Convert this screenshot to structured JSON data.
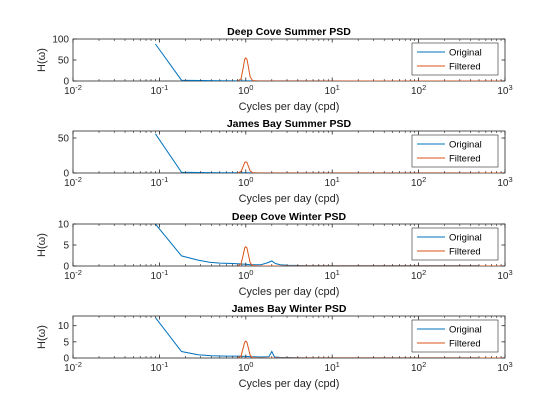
{
  "figure": {
    "legend_labels": [
      "Original",
      "Filtered"
    ],
    "colors": {
      "original": "#0072BD",
      "filtered": "#D95319",
      "axes": "#262626",
      "background": "#ffffff"
    }
  },
  "chart_data": [
    {
      "type": "line",
      "title": "Deep Cove Summer PSD",
      "xlabel": "Cycles per day (cpd)",
      "ylabel": "H(ω)",
      "xscale": "log",
      "xlim": [
        0.01,
        1000
      ],
      "ylim": [
        0,
        100
      ],
      "yticks": [
        0,
        50,
        100
      ],
      "xtick_labels": [
        "10-2",
        "10-1",
        "100",
        "101",
        "102",
        "103"
      ],
      "legend": "top-right",
      "grid": false,
      "series": [
        {
          "name": "Original",
          "x": [
            0.09,
            0.18,
            0.5,
            0.85,
            1.0,
            2.0,
            5,
            20,
            100,
            500
          ],
          "y": [
            88,
            2,
            0.5,
            0.3,
            0.3,
            0.2,
            0.2,
            0.1,
            0.1,
            0.1
          ]
        },
        {
          "name": "Filtered",
          "x": [
            0.8,
            0.88,
            0.93,
            0.97,
            1.0,
            1.03,
            1.07,
            1.12,
            1.2,
            1.4,
            3,
            10,
            100,
            1000
          ],
          "y": [
            0,
            5,
            30,
            52,
            55,
            52,
            35,
            10,
            1,
            0,
            0,
            0,
            0,
            0
          ]
        }
      ]
    },
    {
      "type": "line",
      "title": "James Bay Summer PSD",
      "xlabel": "Cycles per day (cpd)",
      "ylabel": "",
      "xscale": "log",
      "xlim": [
        0.01,
        1000
      ],
      "ylim": [
        0,
        60
      ],
      "yticks": [
        0,
        50
      ],
      "xtick_labels": [
        "10-2",
        "10-1",
        "100",
        "101",
        "102",
        "103"
      ],
      "legend": "top-right",
      "grid": false,
      "series": [
        {
          "name": "Original",
          "x": [
            0.09,
            0.18,
            0.5,
            1.0,
            2.0,
            10,
            100,
            500
          ],
          "y": [
            56,
            1,
            0.3,
            0.3,
            0.2,
            0.1,
            0.1,
            0.1
          ]
        },
        {
          "name": "Filtered",
          "x": [
            0.8,
            0.88,
            0.93,
            0.97,
            1.0,
            1.03,
            1.07,
            1.12,
            1.2,
            1.4,
            10,
            1000
          ],
          "y": [
            0,
            2,
            9,
            15,
            16,
            15,
            10,
            3,
            0.5,
            0,
            0,
            0
          ]
        }
      ]
    },
    {
      "type": "line",
      "title": "Deep Cove Winter PSD",
      "xlabel": "Cycles per day (cpd)",
      "ylabel": "H(ω)",
      "xscale": "log",
      "xlim": [
        0.01,
        1000
      ],
      "ylim": [
        0,
        10
      ],
      "yticks": [
        0,
        5,
        10
      ],
      "xtick_labels": [
        "10-2",
        "10-1",
        "100",
        "101",
        "102",
        "103"
      ],
      "legend": "top-right",
      "grid": false,
      "series": [
        {
          "name": "Original",
          "x": [
            0.09,
            0.18,
            0.28,
            0.38,
            0.5,
            0.7,
            0.85,
            1.0,
            1.15,
            1.5,
            1.8,
            2.0,
            2.2,
            2.5,
            3,
            5,
            20,
            100,
            500
          ],
          "y": [
            10,
            2.4,
            1.4,
            0.9,
            0.7,
            0.6,
            0.5,
            0.4,
            0.3,
            0.3,
            0.8,
            1.2,
            0.6,
            0.3,
            0.2,
            0.1,
            0.1,
            0.1,
            0.1
          ]
        },
        {
          "name": "Filtered",
          "x": [
            0.8,
            0.88,
            0.93,
            0.97,
            1.0,
            1.03,
            1.07,
            1.12,
            1.2,
            1.4,
            10,
            1000
          ],
          "y": [
            0,
            0.5,
            2.5,
            4.3,
            4.6,
            4.3,
            2.8,
            0.8,
            0.1,
            0,
            0,
            0
          ]
        }
      ]
    },
    {
      "type": "line",
      "title": "James Bay Winter PSD",
      "xlabel": "Cycles per day (cpd)",
      "ylabel": "H(ω)",
      "xscale": "log",
      "xlim": [
        0.01,
        1000
      ],
      "ylim": [
        0,
        13
      ],
      "yticks": [
        0,
        5,
        10
      ],
      "xtick_labels": [
        "10-2",
        "10-1",
        "100",
        "101",
        "102",
        "103"
      ],
      "legend": "top-right",
      "grid": false,
      "series": [
        {
          "name": "Original",
          "x": [
            0.09,
            0.18,
            0.28,
            0.4,
            0.6,
            0.85,
            1.0,
            1.15,
            1.5,
            1.85,
            2.0,
            2.15,
            2.5,
            5,
            20,
            100,
            500
          ],
          "y": [
            12.5,
            2,
            1,
            0.7,
            0.6,
            0.6,
            0.5,
            0.4,
            0.3,
            0.4,
            2,
            0.3,
            0.2,
            0.1,
            0.1,
            0.1,
            0.1
          ]
        },
        {
          "name": "Filtered",
          "x": [
            0.8,
            0.88,
            0.93,
            0.97,
            1.0,
            1.03,
            1.07,
            1.12,
            1.2,
            1.4,
            10,
            1000
          ],
          "y": [
            0,
            0.6,
            3,
            4.9,
            5.2,
            4.9,
            3.2,
            0.9,
            0.1,
            0,
            0,
            0
          ]
        }
      ]
    }
  ]
}
